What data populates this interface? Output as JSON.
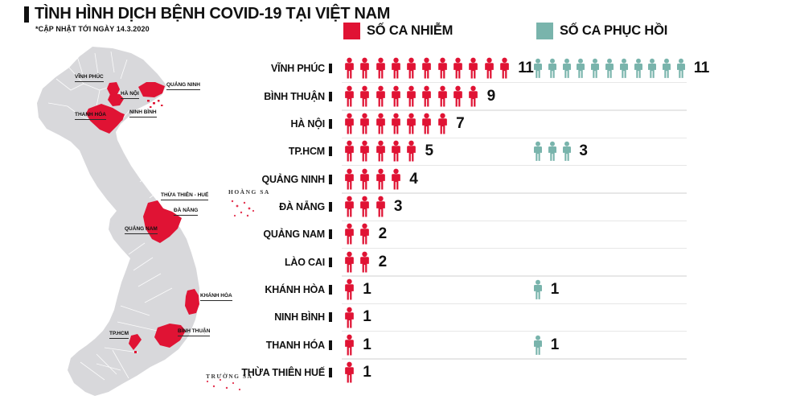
{
  "header": {
    "title": "TÌNH HÌNH DỊCH BỆNH COVID-19 TẠI VIỆT NAM",
    "subtitle": "*CẬP NHẬT TỚI NGÀY 14.3.2020"
  },
  "legend": {
    "infected": "SỐ CA NHIỄM",
    "recovered": "SỐ CA PHỤC HỒI"
  },
  "colors": {
    "infected": "#e01334",
    "recovered": "#79b4ac",
    "map_base": "#d8d8db",
    "divider": "#e7e7e7",
    "text": "#111111"
  },
  "chart_data": {
    "type": "pictogram",
    "unit": "1 person icon = 1 case",
    "legend_position": "top",
    "categories": [
      "VĨNH PHÚC",
      "BÌNH THUẬN",
      "HÀ NỘI",
      "TP.HCM",
      "QUẢNG NINH",
      "ĐÀ NẴNG",
      "QUẢNG NAM",
      "LÀO CAI",
      "KHÁNH HÒA",
      "NINH BÌNH",
      "THANH HÓA",
      "THỪA THIÊN HUẾ"
    ],
    "series": [
      {
        "name": "SỐ CA NHIỄM",
        "color": "#e01334",
        "values": [
          11,
          9,
          7,
          5,
          4,
          3,
          2,
          2,
          1,
          1,
          1,
          1
        ]
      },
      {
        "name": "SỐ CA PHỤC HỒI",
        "color": "#79b4ac",
        "values": [
          11,
          0,
          0,
          3,
          0,
          0,
          0,
          0,
          1,
          0,
          1,
          0
        ]
      }
    ]
  },
  "map": {
    "labels": [
      {
        "text": "VĨNH PHÚC"
      },
      {
        "text": "QUẢNG NINH"
      },
      {
        "text": "HÀ NỘI"
      },
      {
        "text": "NINH BÌNH"
      },
      {
        "text": "THANH HÓA"
      },
      {
        "text": "THỪA THIÊN - HUẾ"
      },
      {
        "text": "ĐÀ NẴNG"
      },
      {
        "text": "QUẢNG NAM"
      },
      {
        "text": "KHÁNH HÒA"
      },
      {
        "text": "BÌNH THUẬN"
      },
      {
        "text": "TP.HCM"
      }
    ],
    "islands": [
      {
        "text": "HOÀNG SA"
      },
      {
        "text": "TRƯỜNG SA"
      }
    ]
  }
}
